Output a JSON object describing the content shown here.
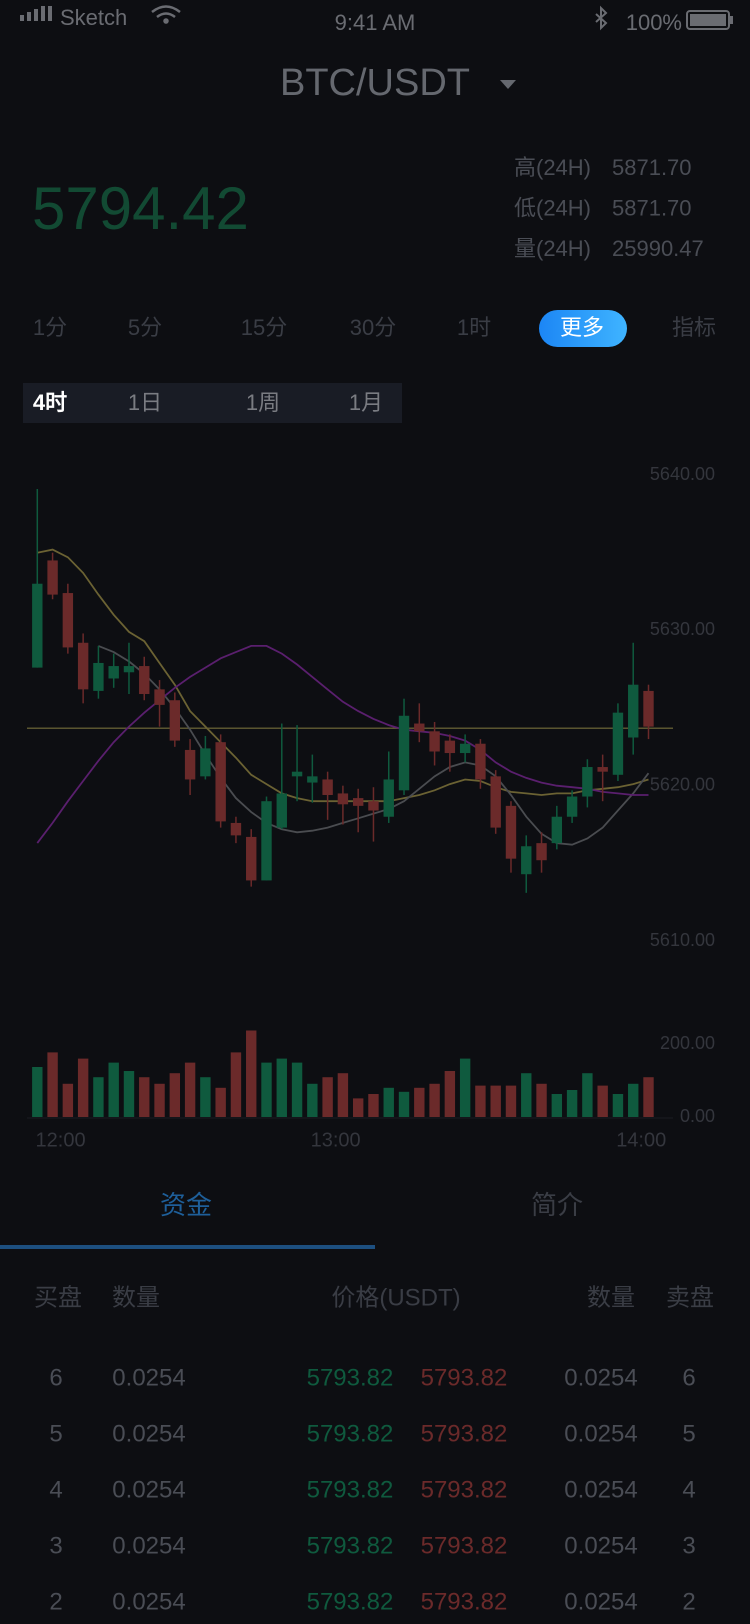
{
  "status_bar": {
    "carrier": "Sketch",
    "time": "9:41 AM",
    "battery": "100%"
  },
  "header": {
    "pair": "BTC/USDT"
  },
  "ticker": {
    "price": "5794.42",
    "stats": [
      {
        "label": "高(24H)",
        "value": "5871.70"
      },
      {
        "label": "低(24H)",
        "value": "5871.70"
      },
      {
        "label": "量(24H)",
        "value": "25990.47"
      }
    ]
  },
  "periods": [
    {
      "label": "1分"
    },
    {
      "label": "5分"
    },
    {
      "label": "15分"
    },
    {
      "label": "30分"
    },
    {
      "label": "1时"
    },
    {
      "label": "更多",
      "selected": true
    },
    {
      "label": "指标"
    }
  ],
  "sub_periods": [
    {
      "label": "4时",
      "selected": true
    },
    {
      "label": "1日"
    },
    {
      "label": "1周"
    },
    {
      "label": "1月"
    }
  ],
  "chart_data": {
    "type": "candlestick",
    "categories": [
      null,
      "12:00",
      null,
      null,
      null,
      null,
      null,
      null,
      null,
      null,
      null,
      null,
      null,
      null,
      null,
      null,
      null,
      null,
      null,
      "13:00",
      null,
      null,
      null,
      null,
      null,
      null,
      null,
      null,
      null,
      null,
      null,
      null,
      null,
      null,
      null,
      null,
      null,
      null,
      null,
      "14:00",
      null
    ],
    "candles": [
      {
        "o": 5627.6,
        "h": 5639.1,
        "l": 5627.6,
        "c": 5633.0
      },
      {
        "o": 5634.5,
        "h": 5635.0,
        "l": 5632.0,
        "c": 5632.3
      },
      {
        "o": 5632.4,
        "h": 5633.0,
        "l": 5628.5,
        "c": 5628.9
      },
      {
        "o": 5629.2,
        "h": 5629.8,
        "l": 5625.3,
        "c": 5626.2
      },
      {
        "o": 5626.1,
        "h": 5629.0,
        "l": 5625.6,
        "c": 5627.9
      },
      {
        "o": 5626.9,
        "h": 5628.5,
        "l": 5626.3,
        "c": 5627.7
      },
      {
        "o": 5627.3,
        "h": 5629.2,
        "l": 5625.9,
        "c": 5627.7
      },
      {
        "o": 5627.7,
        "h": 5628.3,
        "l": 5625.5,
        "c": 5625.9
      },
      {
        "o": 5626.2,
        "h": 5626.8,
        "l": 5623.8,
        "c": 5625.2
      },
      {
        "o": 5625.5,
        "h": 5626.0,
        "l": 5622.5,
        "c": 5622.9
      },
      {
        "o": 5622.3,
        "h": 5623.0,
        "l": 5619.4,
        "c": 5620.4
      },
      {
        "o": 5620.6,
        "h": 5623.2,
        "l": 5620.4,
        "c": 5622.4
      },
      {
        "o": 5622.8,
        "h": 5623.3,
        "l": 5617.3,
        "c": 5617.7
      },
      {
        "o": 5617.6,
        "h": 5618.0,
        "l": 5616.3,
        "c": 5616.8
      },
      {
        "o": 5616.7,
        "h": 5617.2,
        "l": 5613.5,
        "c": 5613.9
      },
      {
        "o": 5613.9,
        "h": 5619.3,
        "l": 5613.9,
        "c": 5619.0
      },
      {
        "o": 5617.3,
        "h": 5624.0,
        "l": 5617.2,
        "c": 5619.5
      },
      {
        "o": 5620.6,
        "h": 5623.9,
        "l": 5619.0,
        "c": 5620.9
      },
      {
        "o": 5620.2,
        "h": 5622.0,
        "l": 5618.9,
        "c": 5620.6
      },
      {
        "o": 5620.4,
        "h": 5620.9,
        "l": 5617.8,
        "c": 5619.4
      },
      {
        "o": 5619.5,
        "h": 5620.0,
        "l": 5617.5,
        "c": 5618.8
      },
      {
        "o": 5619.2,
        "h": 5619.8,
        "l": 5617.0,
        "c": 5618.7
      },
      {
        "o": 5619.0,
        "h": 5619.9,
        "l": 5616.4,
        "c": 5618.4
      },
      {
        "o": 5618.0,
        "h": 5622.2,
        "l": 5617.6,
        "c": 5620.4
      },
      {
        "o": 5619.7,
        "h": 5625.6,
        "l": 5619.4,
        "c": 5624.5
      },
      {
        "o": 5624.0,
        "h": 5625.3,
        "l": 5622.8,
        "c": 5623.5
      },
      {
        "o": 5623.5,
        "h": 5624.1,
        "l": 5621.3,
        "c": 5622.2
      },
      {
        "o": 5622.9,
        "h": 5623.3,
        "l": 5620.9,
        "c": 5622.1
      },
      {
        "o": 5622.1,
        "h": 5623.3,
        "l": 5621.5,
        "c": 5622.7
      },
      {
        "o": 5622.7,
        "h": 5623.0,
        "l": 5619.8,
        "c": 5620.4
      },
      {
        "o": 5620.6,
        "h": 5621.0,
        "l": 5616.9,
        "c": 5617.3
      },
      {
        "o": 5618.7,
        "h": 5619.0,
        "l": 5614.4,
        "c": 5615.3
      },
      {
        "o": 5614.3,
        "h": 5616.8,
        "l": 5613.1,
        "c": 5616.1
      },
      {
        "o": 5616.3,
        "h": 5617.0,
        "l": 5614.4,
        "c": 5615.2
      },
      {
        "o": 5616.3,
        "h": 5618.7,
        "l": 5615.9,
        "c": 5618.0
      },
      {
        "o": 5618.0,
        "h": 5619.7,
        "l": 5617.6,
        "c": 5619.3
      },
      {
        "o": 5619.3,
        "h": 5621.7,
        "l": 5618.6,
        "c": 5621.2
      },
      {
        "o": 5621.2,
        "h": 5622.0,
        "l": 5619.0,
        "c": 5620.9
      },
      {
        "o": 5620.7,
        "h": 5625.3,
        "l": 5620.3,
        "c": 5624.7
      },
      {
        "o": 5623.1,
        "h": 5629.2,
        "l": 5622.0,
        "c": 5626.5
      },
      {
        "o": 5626.1,
        "h": 5626.5,
        "l": 5623.0,
        "c": 5623.8
      }
    ],
    "up_color": "#0f5a3e",
    "down_color": "#6b2a2a",
    "ylim": [
      5610,
      5640
    ],
    "yticks": [
      {
        "value": 5640,
        "label": "5640.00"
      },
      {
        "value": 5630,
        "label": "5630.00"
      },
      {
        "value": 5620,
        "label": "5620.00"
      },
      {
        "value": 5610,
        "label": "5610.00"
      }
    ],
    "moving_averages": [
      {
        "color": "#6b6233",
        "values": [
          5635.0,
          5635.2,
          5634.7,
          5633.7,
          5632.3,
          5631.0,
          5629.9,
          5629.3,
          5627.9,
          5626.5,
          5624.8,
          5623.8,
          5622.8,
          5621.8,
          5620.7,
          5620.1,
          5619.5,
          5619.2,
          5619.0,
          5619.0,
          5619.0,
          5619.0,
          5619.0,
          5619.0,
          5619.2,
          5619.4,
          5619.7,
          5620.1,
          5620.4,
          5620.3,
          5619.9,
          5619.6,
          5619.5,
          5619.4,
          5619.5,
          5619.5,
          5619.7,
          5619.8,
          5619.9,
          5620.1,
          5620.4
        ]
      },
      {
        "color": "#4a4c50",
        "values": [
          null,
          null,
          null,
          null,
          5629.0,
          5628.6,
          5628.0,
          5627.2,
          5626.2,
          5625.0,
          5623.6,
          5622.0,
          5620.5,
          5619.2,
          5618.3,
          5617.6,
          5617.2,
          5617.0,
          5617.1,
          5617.3,
          5617.6,
          5617.9,
          5618.2,
          5618.5,
          5619.0,
          5619.8,
          5620.6,
          5621.2,
          5621.5,
          5621.3,
          5620.6,
          5619.4,
          5618.0,
          5616.9,
          5616.3,
          5616.2,
          5616.6,
          5617.3,
          5618.4,
          5619.5,
          5620.8
        ]
      },
      {
        "color": "#5a1f6e",
        "values": [
          5616.3,
          5617.6,
          5619.0,
          5620.3,
          5621.6,
          5622.8,
          5623.8,
          5624.7,
          5625.5,
          5626.3,
          5627.0,
          5627.6,
          5628.2,
          5628.6,
          5629.0,
          5629.0,
          5628.5,
          5627.8,
          5627.0,
          5626.2,
          5625.4,
          5624.8,
          5624.3,
          5623.9,
          5623.6,
          5623.5,
          5623.4,
          5623.2,
          5622.9,
          5622.3,
          5621.5,
          5620.9,
          5620.5,
          5620.2,
          5620.0,
          5619.9,
          5619.8,
          5619.6,
          5619.5,
          5619.4,
          5619.4
        ]
      }
    ],
    "price_line": 5623.7,
    "price_line_color": "#5a5530",
    "volume": {
      "values": [
        137,
        177,
        91,
        160,
        109,
        149,
        126,
        109,
        91,
        120,
        149,
        109,
        80,
        177,
        237,
        149,
        160,
        149,
        91,
        109,
        120,
        51,
        63,
        80,
        69,
        80,
        91,
        126,
        160,
        86,
        86,
        86,
        120,
        91,
        63,
        74,
        120,
        86,
        63,
        91,
        109
      ],
      "ylim": [
        0,
        200
      ],
      "yticks": [
        {
          "value": 200,
          "label": "200.00"
        },
        {
          "value": 0,
          "label": "0.00"
        }
      ]
    }
  },
  "tabs": [
    {
      "label": "资金",
      "selected": true
    },
    {
      "label": "简介"
    }
  ],
  "order_book": {
    "columns": [
      "买盘",
      "数量",
      "价格(USDT)",
      "数量",
      "卖盘"
    ],
    "rows": [
      [
        "6",
        "0.0254",
        "5793.82",
        "5793.82",
        "0.0254",
        "6"
      ],
      [
        "5",
        "0.0254",
        "5793.82",
        "5793.82",
        "0.0254",
        "5"
      ],
      [
        "4",
        "0.0254",
        "5793.82",
        "5793.82",
        "0.0254",
        "4"
      ],
      [
        "3",
        "0.0254",
        "5793.82",
        "5793.82",
        "0.0254",
        "3"
      ],
      [
        "2",
        "0.0254",
        "5793.82",
        "5793.82",
        "0.0254",
        "2"
      ]
    ]
  }
}
